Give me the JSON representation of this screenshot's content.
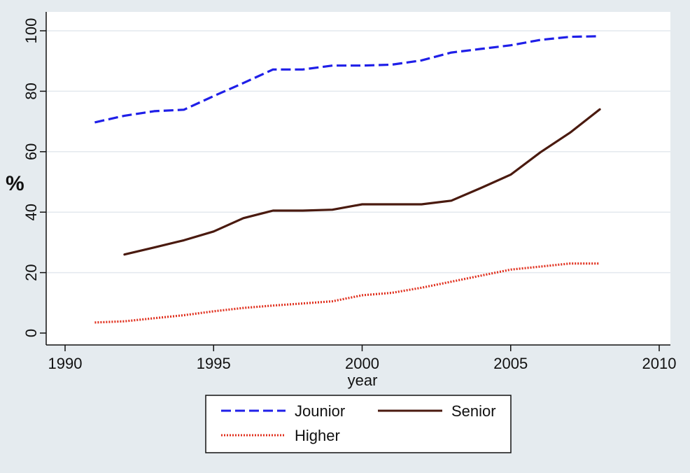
{
  "chart_data": {
    "type": "line",
    "title": "",
    "xlabel": "year",
    "ylabel": "%",
    "xlim": [
      1990,
      2010
    ],
    "ylim": [
      0,
      100
    ],
    "x_ticks": [
      1990,
      1995,
      2000,
      2005,
      2010
    ],
    "y_ticks": [
      0,
      20,
      40,
      60,
      80,
      100
    ],
    "grid": true,
    "legend_position": "bottom",
    "series": [
      {
        "name": "Jounior",
        "style": "dashed",
        "color": "#1f1fe8",
        "x": [
          1991,
          1992,
          1993,
          1994,
          1995,
          1996,
          1997,
          1998,
          1999,
          2000,
          2001,
          2002,
          2003,
          2004,
          2005,
          2006,
          2007,
          2008
        ],
        "y": [
          69.7,
          71.9,
          73.4,
          73.9,
          78.4,
          82.7,
          87.2,
          87.2,
          88.5,
          88.5,
          88.8,
          90.2,
          92.8,
          94.0,
          95.2,
          97.0,
          98.0,
          98.2
        ]
      },
      {
        "name": "Senior",
        "style": "solid",
        "color": "#4a1a0f",
        "x": [
          1992,
          1993,
          1994,
          1995,
          1996,
          1997,
          1998,
          1999,
          2000,
          2001,
          2002,
          2003,
          2004,
          2005,
          2006,
          2007,
          2008
        ],
        "y": [
          26.0,
          28.3,
          30.7,
          33.6,
          38.0,
          40.5,
          40.5,
          40.8,
          42.6,
          42.6,
          42.6,
          43.8,
          48.0,
          52.4,
          59.8,
          66.3,
          74.0
        ]
      },
      {
        "name": "Higher",
        "style": "dotted",
        "color": "#e0301e",
        "x": [
          1991,
          1992,
          1993,
          1994,
          1995,
          1996,
          1997,
          1998,
          1999,
          2000,
          2001,
          2002,
          2003,
          2004,
          2005,
          2006,
          2007,
          2008
        ],
        "y": [
          3.5,
          3.9,
          4.9,
          5.9,
          7.2,
          8.3,
          9.1,
          9.8,
          10.5,
          12.5,
          13.3,
          15.0,
          17.0,
          19.0,
          21.0,
          22.0,
          23.0,
          23.0
        ]
      }
    ]
  }
}
